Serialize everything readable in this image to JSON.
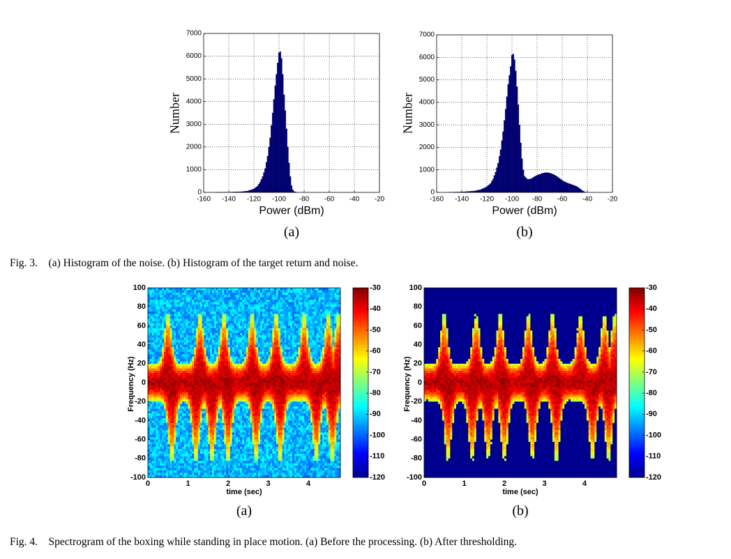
{
  "fig3": {
    "caption": "Fig. 3.    (a) Histogram of the noise. (b) Histogram of the target return and noise.",
    "panel_a_label": "(a)",
    "panel_b_label": "(b)"
  },
  "fig4": {
    "caption": "Fig. 4.    Spectrogram of the boxing while standing in place motion. (a) Before the processing. (b) After thresholding.",
    "panel_a_label": "(a)",
    "panel_b_label": "(b)"
  },
  "chart_data": [
    {
      "id": "fig3a",
      "type": "bar",
      "title": "",
      "xlabel": "Power (dBm)",
      "ylabel": "Number",
      "xlim": [
        -160,
        -20
      ],
      "ylim": [
        0,
        7000
      ],
      "xticks": [
        "-160",
        "-140",
        "-120",
        "-100",
        "-80",
        "-60",
        "-40",
        "-20"
      ],
      "yticks": [
        "0",
        "1000",
        "2000",
        "3000",
        "4000",
        "5000",
        "6000",
        "7000"
      ],
      "grid": true,
      "bar_color": "#00007a",
      "points": [
        [
          -150,
          5
        ],
        [
          -140,
          10
        ],
        [
          -130,
          30
        ],
        [
          -125,
          60
        ],
        [
          -120,
          150
        ],
        [
          -117,
          280
        ],
        [
          -115,
          450
        ],
        [
          -113,
          700
        ],
        [
          -111,
          1050
        ],
        [
          -109,
          1600
        ],
        [
          -107,
          2400
        ],
        [
          -105,
          3500
        ],
        [
          -103,
          4700
        ],
        [
          -101,
          5700
        ],
        [
          -100,
          6150
        ],
        [
          -99,
          6200
        ],
        [
          -98,
          5900
        ],
        [
          -97,
          5200
        ],
        [
          -96,
          4300
        ],
        [
          -95,
          3600
        ],
        [
          -94,
          2800
        ],
        [
          -93,
          2000
        ],
        [
          -92,
          1300
        ],
        [
          -91,
          700
        ],
        [
          -90,
          300
        ],
        [
          -89,
          120
        ],
        [
          -88,
          40
        ],
        [
          -86,
          10
        ]
      ]
    },
    {
      "id": "fig3b",
      "type": "bar",
      "title": "",
      "xlabel": "Power (dBm)",
      "ylabel": "Number",
      "xlim": [
        -160,
        -20
      ],
      "ylim": [
        0,
        7000
      ],
      "xticks": [
        "-160",
        "-140",
        "-120",
        "-100",
        "-80",
        "-60",
        "-40",
        "-20"
      ],
      "yticks": [
        "0",
        "1000",
        "2000",
        "3000",
        "4000",
        "5000",
        "6000",
        "7000"
      ],
      "grid": true,
      "bar_color": "#00007a",
      "points": [
        [
          -150,
          10
        ],
        [
          -140,
          20
        ],
        [
          -130,
          60
        ],
        [
          -125,
          120
        ],
        [
          -120,
          250
        ],
        [
          -117,
          400
        ],
        [
          -115,
          600
        ],
        [
          -113,
          900
        ],
        [
          -111,
          1300
        ],
        [
          -109,
          1900
        ],
        [
          -107,
          2700
        ],
        [
          -105,
          3700
        ],
        [
          -103,
          4800
        ],
        [
          -101,
          5600
        ],
        [
          -100,
          6100
        ],
        [
          -99,
          6150
        ],
        [
          -98,
          5900
        ],
        [
          -97,
          5400
        ],
        [
          -96,
          4700
        ],
        [
          -95,
          3900
        ],
        [
          -94,
          3000
        ],
        [
          -93,
          2200
        ],
        [
          -92,
          1500
        ],
        [
          -91,
          1000
        ],
        [
          -90,
          720
        ],
        [
          -88,
          600
        ],
        [
          -86,
          580
        ],
        [
          -84,
          630
        ],
        [
          -82,
          700
        ],
        [
          -80,
          760
        ],
        [
          -78,
          800
        ],
        [
          -76,
          840
        ],
        [
          -74,
          870
        ],
        [
          -72,
          880
        ],
        [
          -70,
          860
        ],
        [
          -68,
          820
        ],
        [
          -66,
          770
        ],
        [
          -64,
          700
        ],
        [
          -62,
          620
        ],
        [
          -60,
          530
        ],
        [
          -58,
          470
        ],
        [
          -56,
          420
        ],
        [
          -54,
          380
        ],
        [
          -52,
          340
        ],
        [
          -50,
          300
        ],
        [
          -48,
          250
        ],
        [
          -46,
          170
        ],
        [
          -44,
          80
        ],
        [
          -42,
          20
        ]
      ]
    },
    {
      "id": "fig4a",
      "type": "heatmap",
      "title": "",
      "xlabel": "time (sec)",
      "ylabel": "Frequency (Hz)",
      "xlim": [
        0,
        4.8
      ],
      "ylim": [
        -100,
        100
      ],
      "xticks": [
        "0",
        "1",
        "2",
        "3",
        "4"
      ],
      "yticks": [
        "100",
        "80",
        "60",
        "40",
        "20",
        "0",
        "-20",
        "-40",
        "-60",
        "-80",
        "-100"
      ],
      "colorbar": {
        "ticks": [
          "-30",
          "-40",
          "-50",
          "-60",
          "-70",
          "-80",
          "-90",
          "-100",
          "-110",
          "-120"
        ],
        "range": [
          -120,
          -30
        ]
      },
      "thresholded": false
    },
    {
      "id": "fig4b",
      "type": "heatmap",
      "title": "",
      "xlabel": "time (sec)",
      "ylabel": "Frequency (Hz)",
      "xlim": [
        0,
        4.8
      ],
      "ylim": [
        -100,
        100
      ],
      "xticks": [
        "0",
        "1",
        "2",
        "3",
        "4"
      ],
      "yticks": [
        "100",
        "80",
        "60",
        "40",
        "20",
        "0",
        "-20",
        "-40",
        "-60",
        "-80",
        "-100"
      ],
      "colorbar": {
        "ticks": [
          "-30",
          "-40",
          "-50",
          "-60",
          "-70",
          "-80",
          "-90",
          "-100",
          "-110",
          "-120"
        ],
        "range": [
          -120,
          -30
        ]
      },
      "thresholded": true
    }
  ]
}
